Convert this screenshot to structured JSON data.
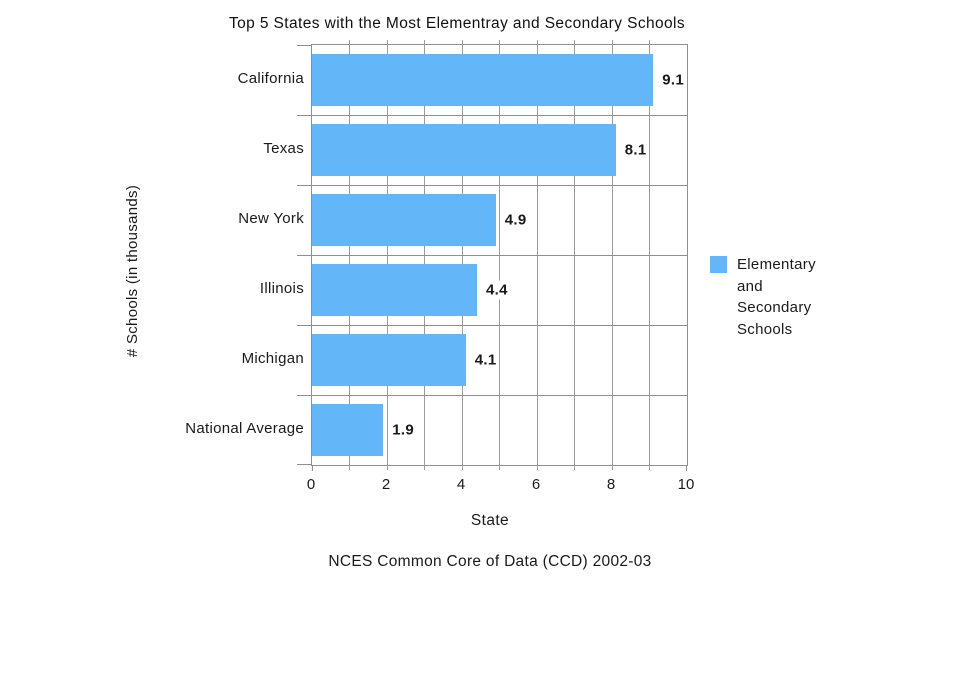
{
  "chart_data": {
    "type": "bar",
    "orientation": "horizontal",
    "title": "Top 5 States with the Most Elementray and Secondary Schools",
    "categories": [
      "California",
      "Texas",
      "New York",
      "Illinois",
      "Michigan",
      "National Average"
    ],
    "values": [
      9.1,
      8.1,
      4.9,
      4.4,
      4.1,
      1.9
    ],
    "value_labels": [
      "9.1",
      "8.1",
      "4.9",
      "4.4",
      "4.1",
      "1.9"
    ],
    "xlabel": "State",
    "ylabel": "# Schools (in thousands)",
    "xlim": [
      0,
      10
    ],
    "x_ticks": [
      0,
      2,
      4,
      6,
      8,
      10
    ],
    "x_minor_tick_step": 1,
    "grid": "on",
    "legend_label": "Elementary and Secondary Schools",
    "legend_position": "right",
    "caption": "NCES Common Core of Data (CCD) 2002-03",
    "colors": {
      "bar": "#63B6F7",
      "grid": "#9c9c9c",
      "axis": "#8f8f8f",
      "text": "#1a1a1a"
    }
  }
}
